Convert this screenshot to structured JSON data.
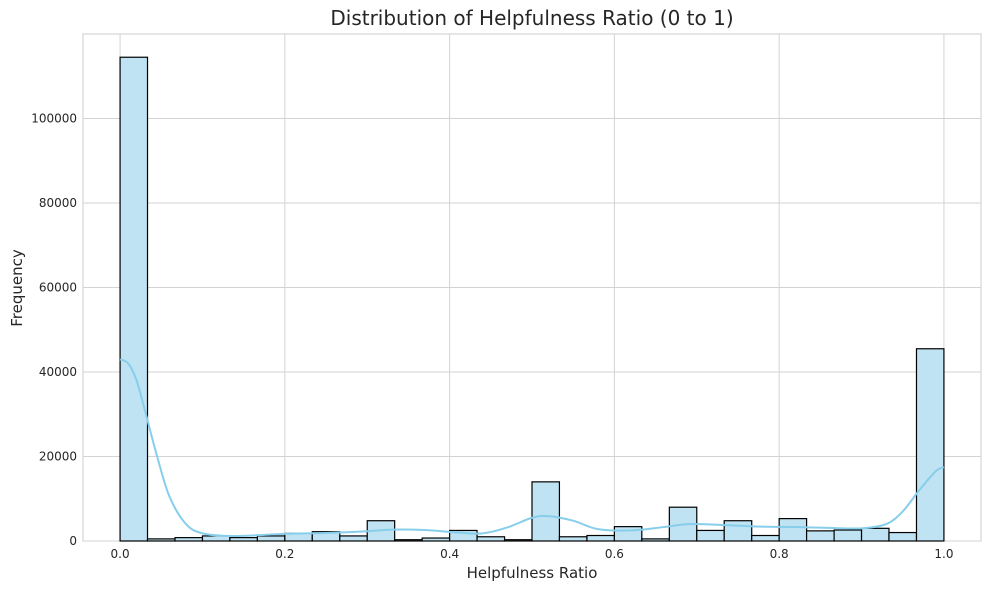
{
  "chart_data": {
    "type": "bar",
    "title": "Distribution of Helpfulness Ratio (0 to 1)",
    "xlabel": "Helpfulness Ratio",
    "ylabel": "Frequency",
    "xlim": [
      -0.045,
      1.045
    ],
    "ylim": [
      0,
      120000
    ],
    "grid": true,
    "x_ticks": [
      0.0,
      0.2,
      0.4,
      0.6,
      0.8,
      1.0
    ],
    "x_tick_labels": [
      "0.0",
      "0.2",
      "0.4",
      "0.6",
      "0.8",
      "1.0"
    ],
    "y_ticks": [
      0,
      20000,
      40000,
      60000,
      80000,
      100000
    ],
    "y_tick_labels": [
      "0",
      "20000",
      "40000",
      "60000",
      "80000",
      "100000"
    ],
    "bin_edges": [
      0.0,
      0.0333,
      0.0667,
      0.1,
      0.1333,
      0.1667,
      0.2,
      0.2333,
      0.2667,
      0.3,
      0.3333,
      0.3667,
      0.4,
      0.4333,
      0.4667,
      0.5,
      0.5333,
      0.5667,
      0.6,
      0.6333,
      0.6667,
      0.7,
      0.7333,
      0.7667,
      0.8,
      0.8333,
      0.8667,
      0.9,
      0.9333,
      0.9667,
      1.0
    ],
    "values": [
      114500,
      500,
      800,
      1200,
      800,
      1200,
      1800,
      2200,
      1200,
      4800,
      300,
      700,
      2500,
      1000,
      300,
      14000,
      1000,
      1300,
      3400,
      500,
      8000,
      2500,
      4800,
      1300,
      5300,
      2400,
      2600,
      3000,
      2000,
      45500
    ],
    "bar_color": "#bfe3f2",
    "bar_edge_color": "#000000",
    "kde": {
      "color": "#87ceeb",
      "x": [
        0.0,
        0.01,
        0.02,
        0.03,
        0.045,
        0.06,
        0.08,
        0.1,
        0.13,
        0.16,
        0.2,
        0.25,
        0.3,
        0.33,
        0.37,
        0.41,
        0.44,
        0.47,
        0.5,
        0.52,
        0.55,
        0.58,
        0.62,
        0.66,
        0.69,
        0.73,
        0.78,
        0.82,
        0.86,
        0.9,
        0.93,
        0.95,
        0.97,
        0.99,
        1.0
      ],
      "y": [
        43000,
        42000,
        38000,
        31000,
        20000,
        10500,
        4000,
        1800,
        1200,
        1300,
        1700,
        1900,
        2300,
        2700,
        2600,
        2000,
        1800,
        3200,
        5500,
        5900,
        4800,
        2800,
        2500,
        3300,
        4000,
        3800,
        3400,
        3300,
        3100,
        3000,
        4000,
        7000,
        12000,
        16500,
        17500
      ]
    }
  }
}
